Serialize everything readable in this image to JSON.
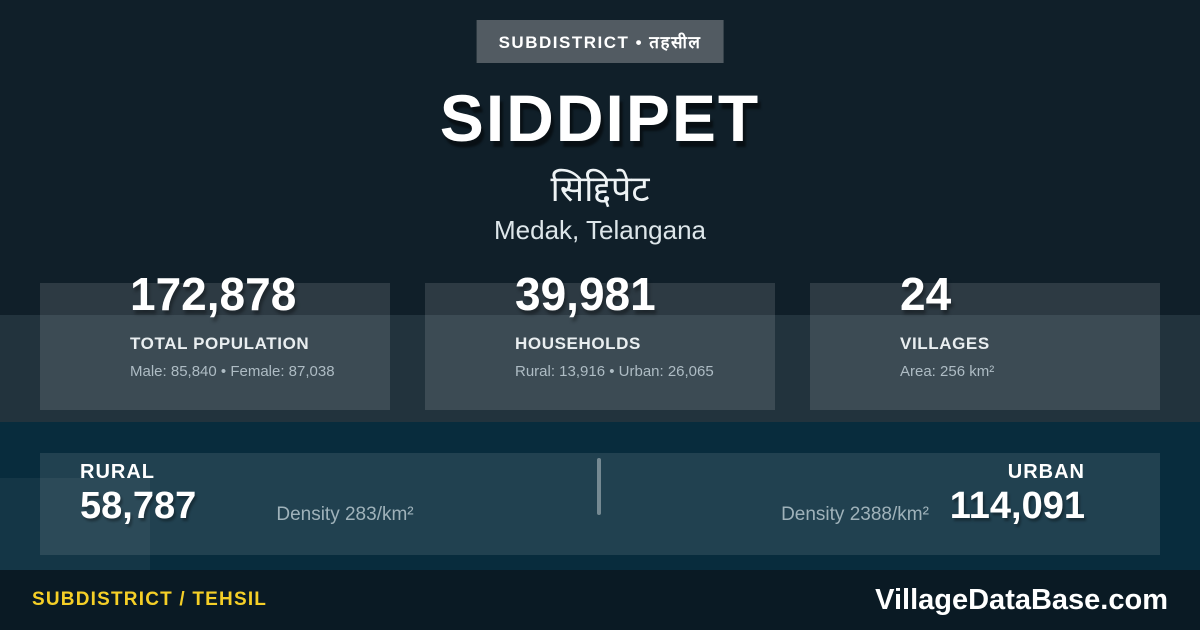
{
  "badge": {
    "label": "SUBDISTRICT • तहसील"
  },
  "header": {
    "title": "SIDDIPET",
    "title_local": "सिद्दिपेट",
    "region": "Medak, Telangana"
  },
  "stats": [
    {
      "value": "172,878",
      "label": "TOTAL POPULATION",
      "detail": "Male: 85,840 • Female: 87,038"
    },
    {
      "value": "39,981",
      "label": "HOUSEHOLDS",
      "detail": "Rural: 13,916 • Urban: 26,065"
    },
    {
      "value": "24",
      "label": "VILLAGES",
      "detail": "Area: 256 km²"
    }
  ],
  "split": {
    "rural": {
      "label": "RURAL",
      "value": "58,787",
      "density": "Density 283/km²"
    },
    "urban": {
      "label": "URBAN",
      "value": "114,091",
      "density": "Density 2388/km²"
    }
  },
  "footer": {
    "type_label": "SUBDISTRICT / TEHSIL",
    "brand": "VillageDataBase.com"
  },
  "colors": {
    "background": "#101F29",
    "stripe": "#22333D",
    "section_blue": "#082C3D",
    "footer_bg": "#0A1A24",
    "badge_gray": "#525B62",
    "accent_yellow": "#F5CF27",
    "detail_gray": "#AEBCC4"
  }
}
